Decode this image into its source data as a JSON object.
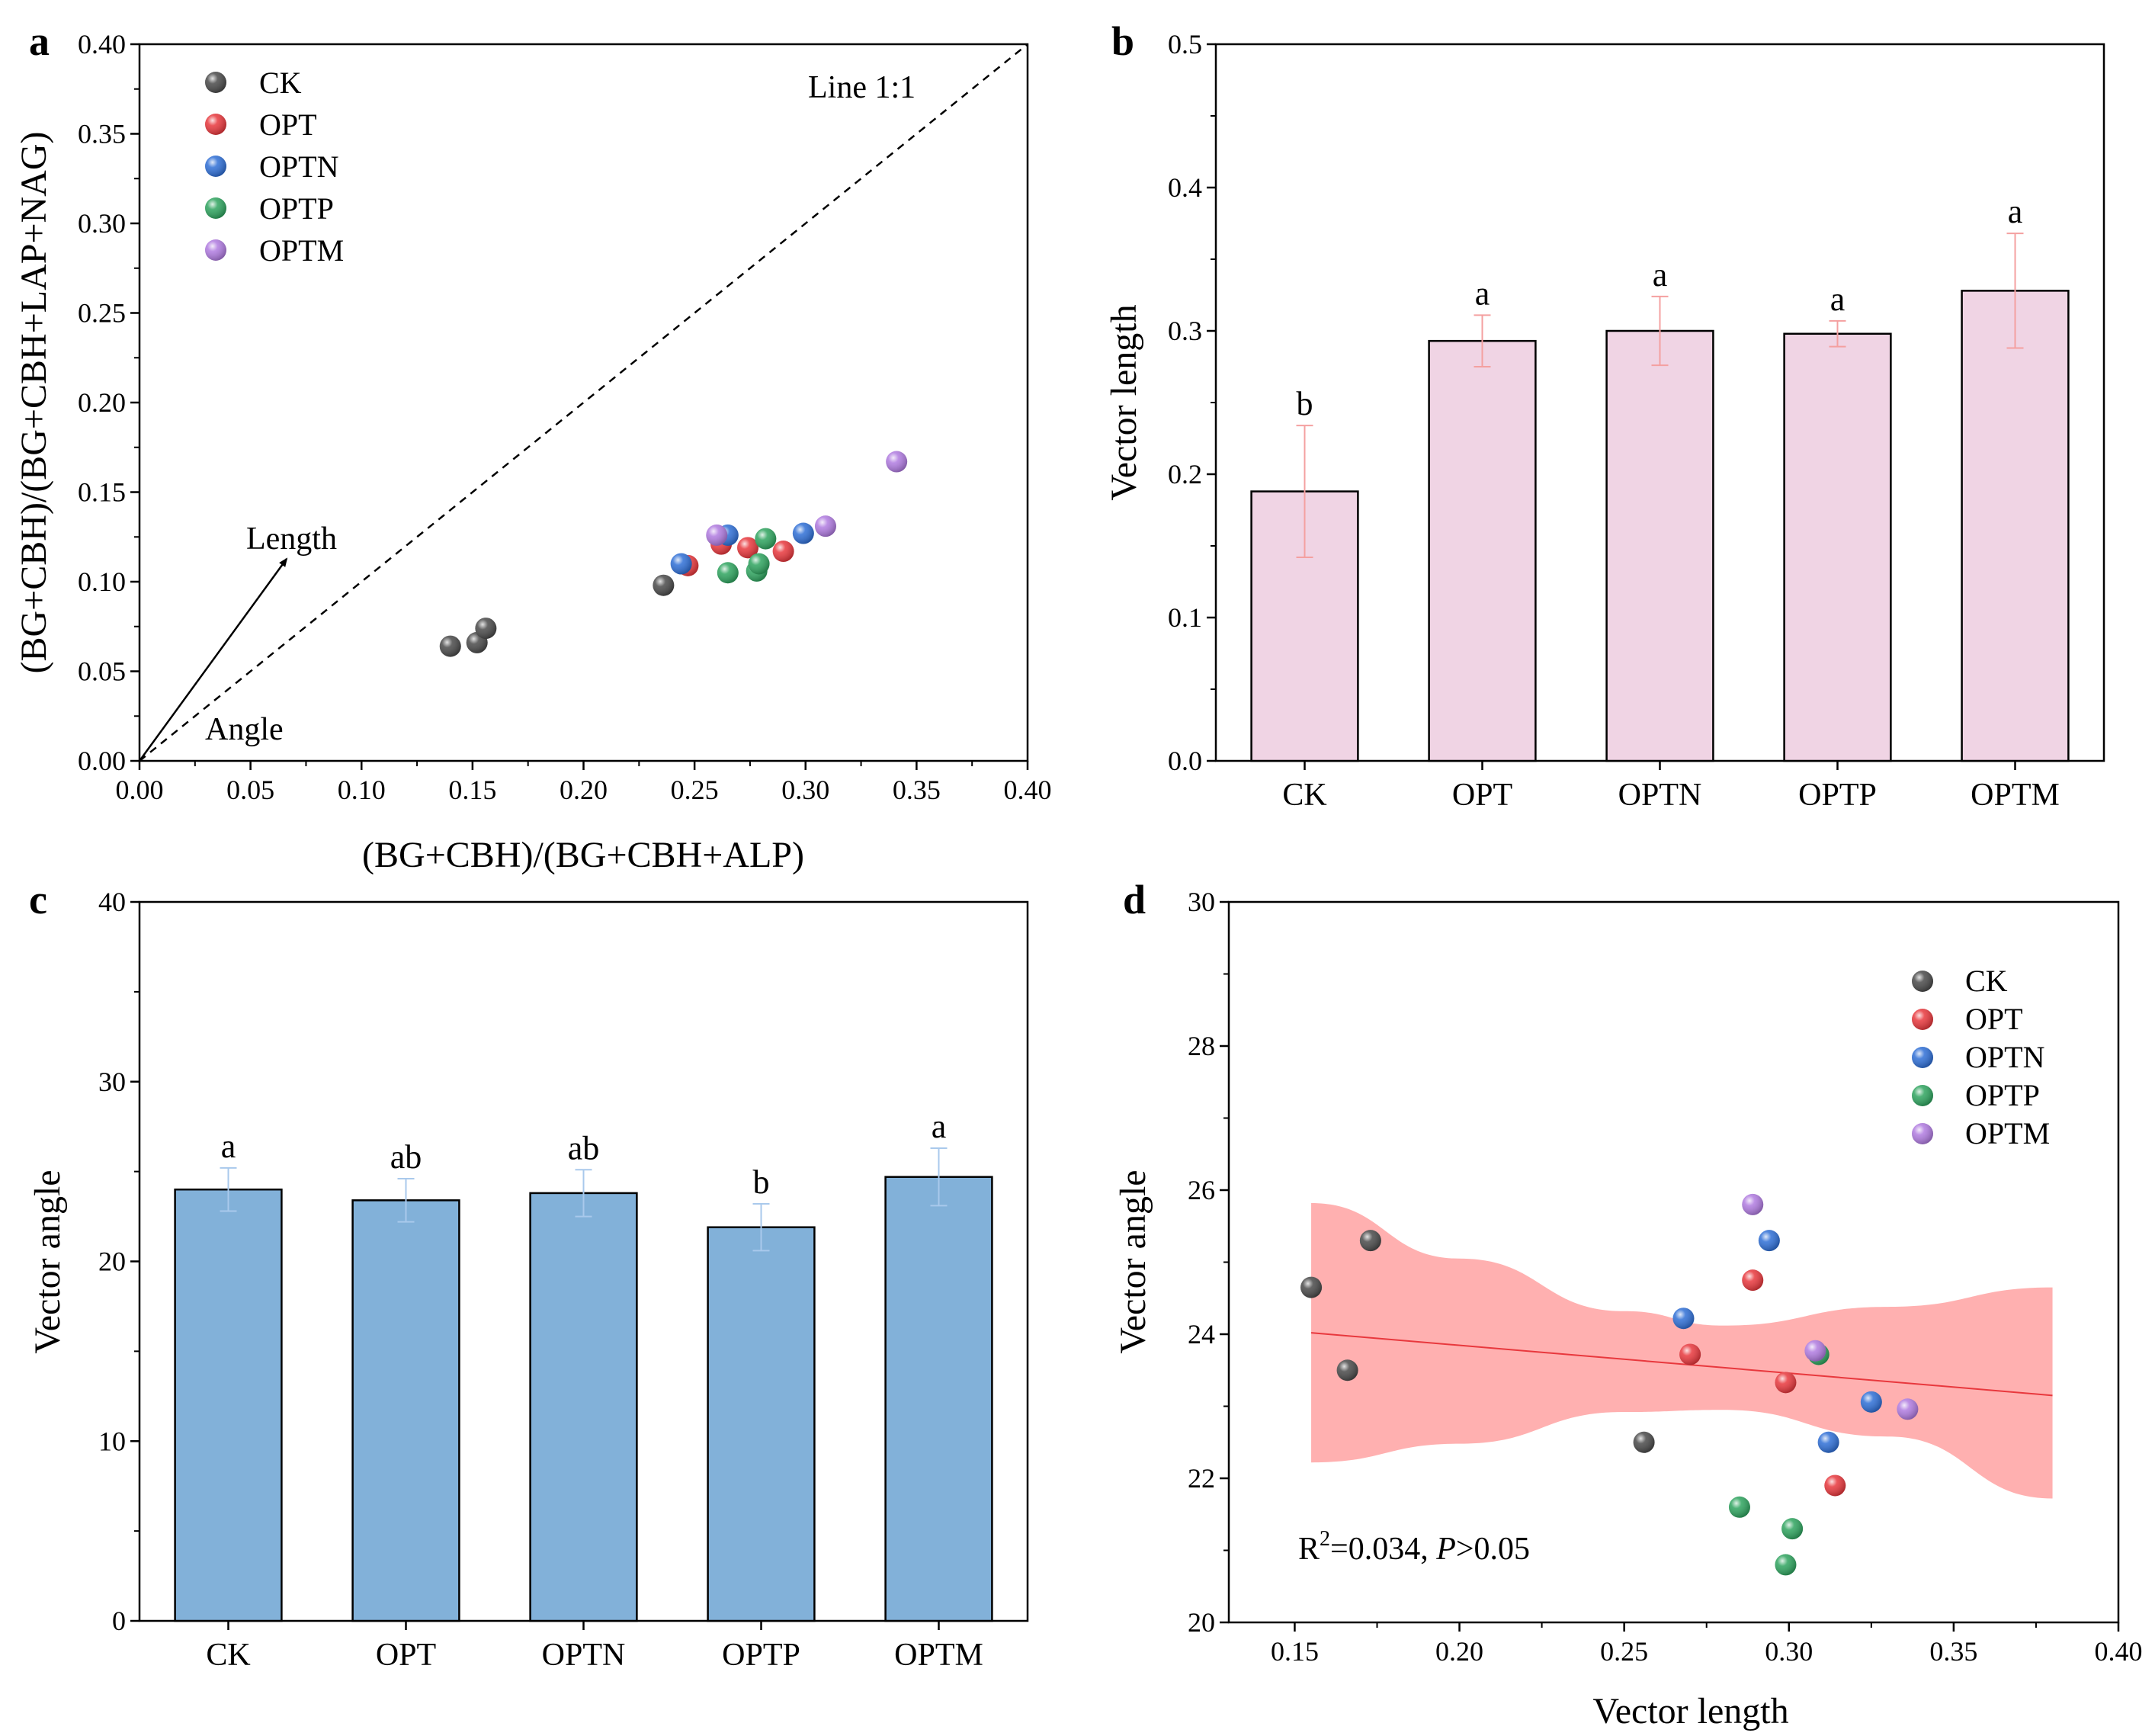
{
  "colors": {
    "CK": "#4a4a4a",
    "OPT": "#e8383d",
    "OPTN": "#2f6fd6",
    "OPTP": "#2fa45f",
    "OPTM": "#b07be0",
    "bar_b": "#f0d4e4",
    "bar_c": "#82b1d9",
    "err_b": "#f4a0a0",
    "err_c": "#a9c9ec",
    "band": "#ff9c9c",
    "fit": "#e8383d"
  },
  "chart_data": [
    {
      "id": "a",
      "type": "scatter",
      "panel_label": "a",
      "xlabel": "(BG+CBH)/(BG+CBH+ALP)",
      "ylabel": "(BG+CBH)/(BG+CBH+LAP+NAG)",
      "xlim": [
        0,
        0.4
      ],
      "ylim": [
        0,
        0.4
      ],
      "xticks": [
        "0.00",
        "0.05",
        "0.10",
        "0.15",
        "0.20",
        "0.25",
        "0.30",
        "0.35",
        "0.40"
      ],
      "yticks": [
        "0.00",
        "0.05",
        "0.10",
        "0.15",
        "0.20",
        "0.25",
        "0.30",
        "0.35",
        "0.40"
      ],
      "legend": [
        "CK",
        "OPT",
        "OPTN",
        "OPTP",
        "OPTM"
      ],
      "line_label": "Line 1:1",
      "length_label": "Length",
      "angle_label": "Angle",
      "series": [
        {
          "name": "CK",
          "points": [
            [
              0.14,
              0.064
            ],
            [
              0.152,
              0.066
            ],
            [
              0.156,
              0.074
            ],
            [
              0.236,
              0.098
            ]
          ]
        },
        {
          "name": "OPT",
          "points": [
            [
              0.247,
              0.109
            ],
            [
              0.262,
              0.121
            ],
            [
              0.274,
              0.119
            ],
            [
              0.29,
              0.117
            ]
          ]
        },
        {
          "name": "OPTN",
          "points": [
            [
              0.244,
              0.11
            ],
            [
              0.265,
              0.126
            ],
            [
              0.299,
              0.127
            ]
          ]
        },
        {
          "name": "OPTP",
          "points": [
            [
              0.265,
              0.105
            ],
            [
              0.278,
              0.106
            ],
            [
              0.279,
              0.11
            ],
            [
              0.282,
              0.124
            ]
          ]
        },
        {
          "name": "OPTM",
          "points": [
            [
              0.26,
              0.126
            ],
            [
              0.309,
              0.131
            ],
            [
              0.341,
              0.167
            ]
          ]
        }
      ]
    },
    {
      "id": "b",
      "type": "bar",
      "panel_label": "b",
      "ylabel": "Vector length",
      "ylim": [
        0,
        0.5
      ],
      "yticks": [
        "0.0",
        "0.1",
        "0.2",
        "0.3",
        "0.4",
        "0.5"
      ],
      "categories": [
        "CK",
        "OPT",
        "OPTN",
        "OPTP",
        "OPTM"
      ],
      "values": [
        0.188,
        0.293,
        0.3,
        0.298,
        0.328
      ],
      "errors": [
        0.046,
        0.018,
        0.024,
        0.009,
        0.04
      ],
      "letters": [
        "b",
        "a",
        "a",
        "a",
        "a"
      ]
    },
    {
      "id": "c",
      "type": "bar",
      "panel_label": "c",
      "ylabel": "Vector angle",
      "ylim": [
        0,
        40
      ],
      "yticks": [
        "0",
        "10",
        "20",
        "30",
        "40"
      ],
      "categories": [
        "CK",
        "OPT",
        "OPTN",
        "OPTP",
        "OPTM"
      ],
      "values": [
        24.0,
        23.4,
        23.8,
        21.9,
        24.7
      ],
      "errors": [
        1.2,
        1.2,
        1.3,
        1.3,
        1.6
      ],
      "letters": [
        "a",
        "ab",
        "ab",
        "b",
        "a"
      ]
    },
    {
      "id": "d",
      "type": "scatter",
      "panel_label": "d",
      "xlabel": "Vector length",
      "ylabel": "Vector angle",
      "xlim": [
        0.13,
        0.4
      ],
      "ylim": [
        20,
        30
      ],
      "xticks": [
        "0.15",
        "0.20",
        "0.25",
        "0.30",
        "0.35",
        "0.40"
      ],
      "yticks": [
        "20",
        "22",
        "24",
        "26",
        "28",
        "30"
      ],
      "legend": [
        "CK",
        "OPT",
        "OPTN",
        "OPTP",
        "OPTM"
      ],
      "stat_r2": "R",
      "stat_sup": "2",
      "stat_mid": "=0.034, ",
      "stat_p": "P",
      "stat_end": ">0.05",
      "fit": {
        "x": [
          0.155,
          0.38
        ],
        "y": [
          24.02,
          23.15
        ]
      },
      "band": {
        "x": [
          0.155,
          0.2,
          0.25,
          0.28,
          0.33,
          0.38
        ],
        "upper": [
          25.82,
          25.05,
          24.32,
          24.12,
          24.38,
          24.65
        ],
        "lower": [
          22.22,
          22.48,
          22.92,
          22.95,
          22.58,
          21.72
        ]
      },
      "series": [
        {
          "name": "CK",
          "points": [
            [
              0.155,
              24.65
            ],
            [
              0.166,
              23.5
            ],
            [
              0.173,
              25.3
            ],
            [
              0.256,
              22.5
            ]
          ]
        },
        {
          "name": "OPT",
          "points": [
            [
              0.27,
              23.72
            ],
            [
              0.289,
              24.75
            ],
            [
              0.299,
              23.33
            ],
            [
              0.314,
              21.9
            ]
          ]
        },
        {
          "name": "OPTN",
          "points": [
            [
              0.268,
              24.22
            ],
            [
              0.294,
              25.3
            ],
            [
              0.312,
              22.5
            ],
            [
              0.325,
              23.06
            ]
          ]
        },
        {
          "name": "OPTP",
          "points": [
            [
              0.285,
              21.6
            ],
            [
              0.299,
              20.8
            ],
            [
              0.301,
              21.3
            ],
            [
              0.309,
              23.72
            ]
          ]
        },
        {
          "name": "OPTM",
          "points": [
            [
              0.289,
              25.8
            ],
            [
              0.308,
              23.77
            ],
            [
              0.336,
              22.96
            ]
          ]
        }
      ]
    }
  ]
}
